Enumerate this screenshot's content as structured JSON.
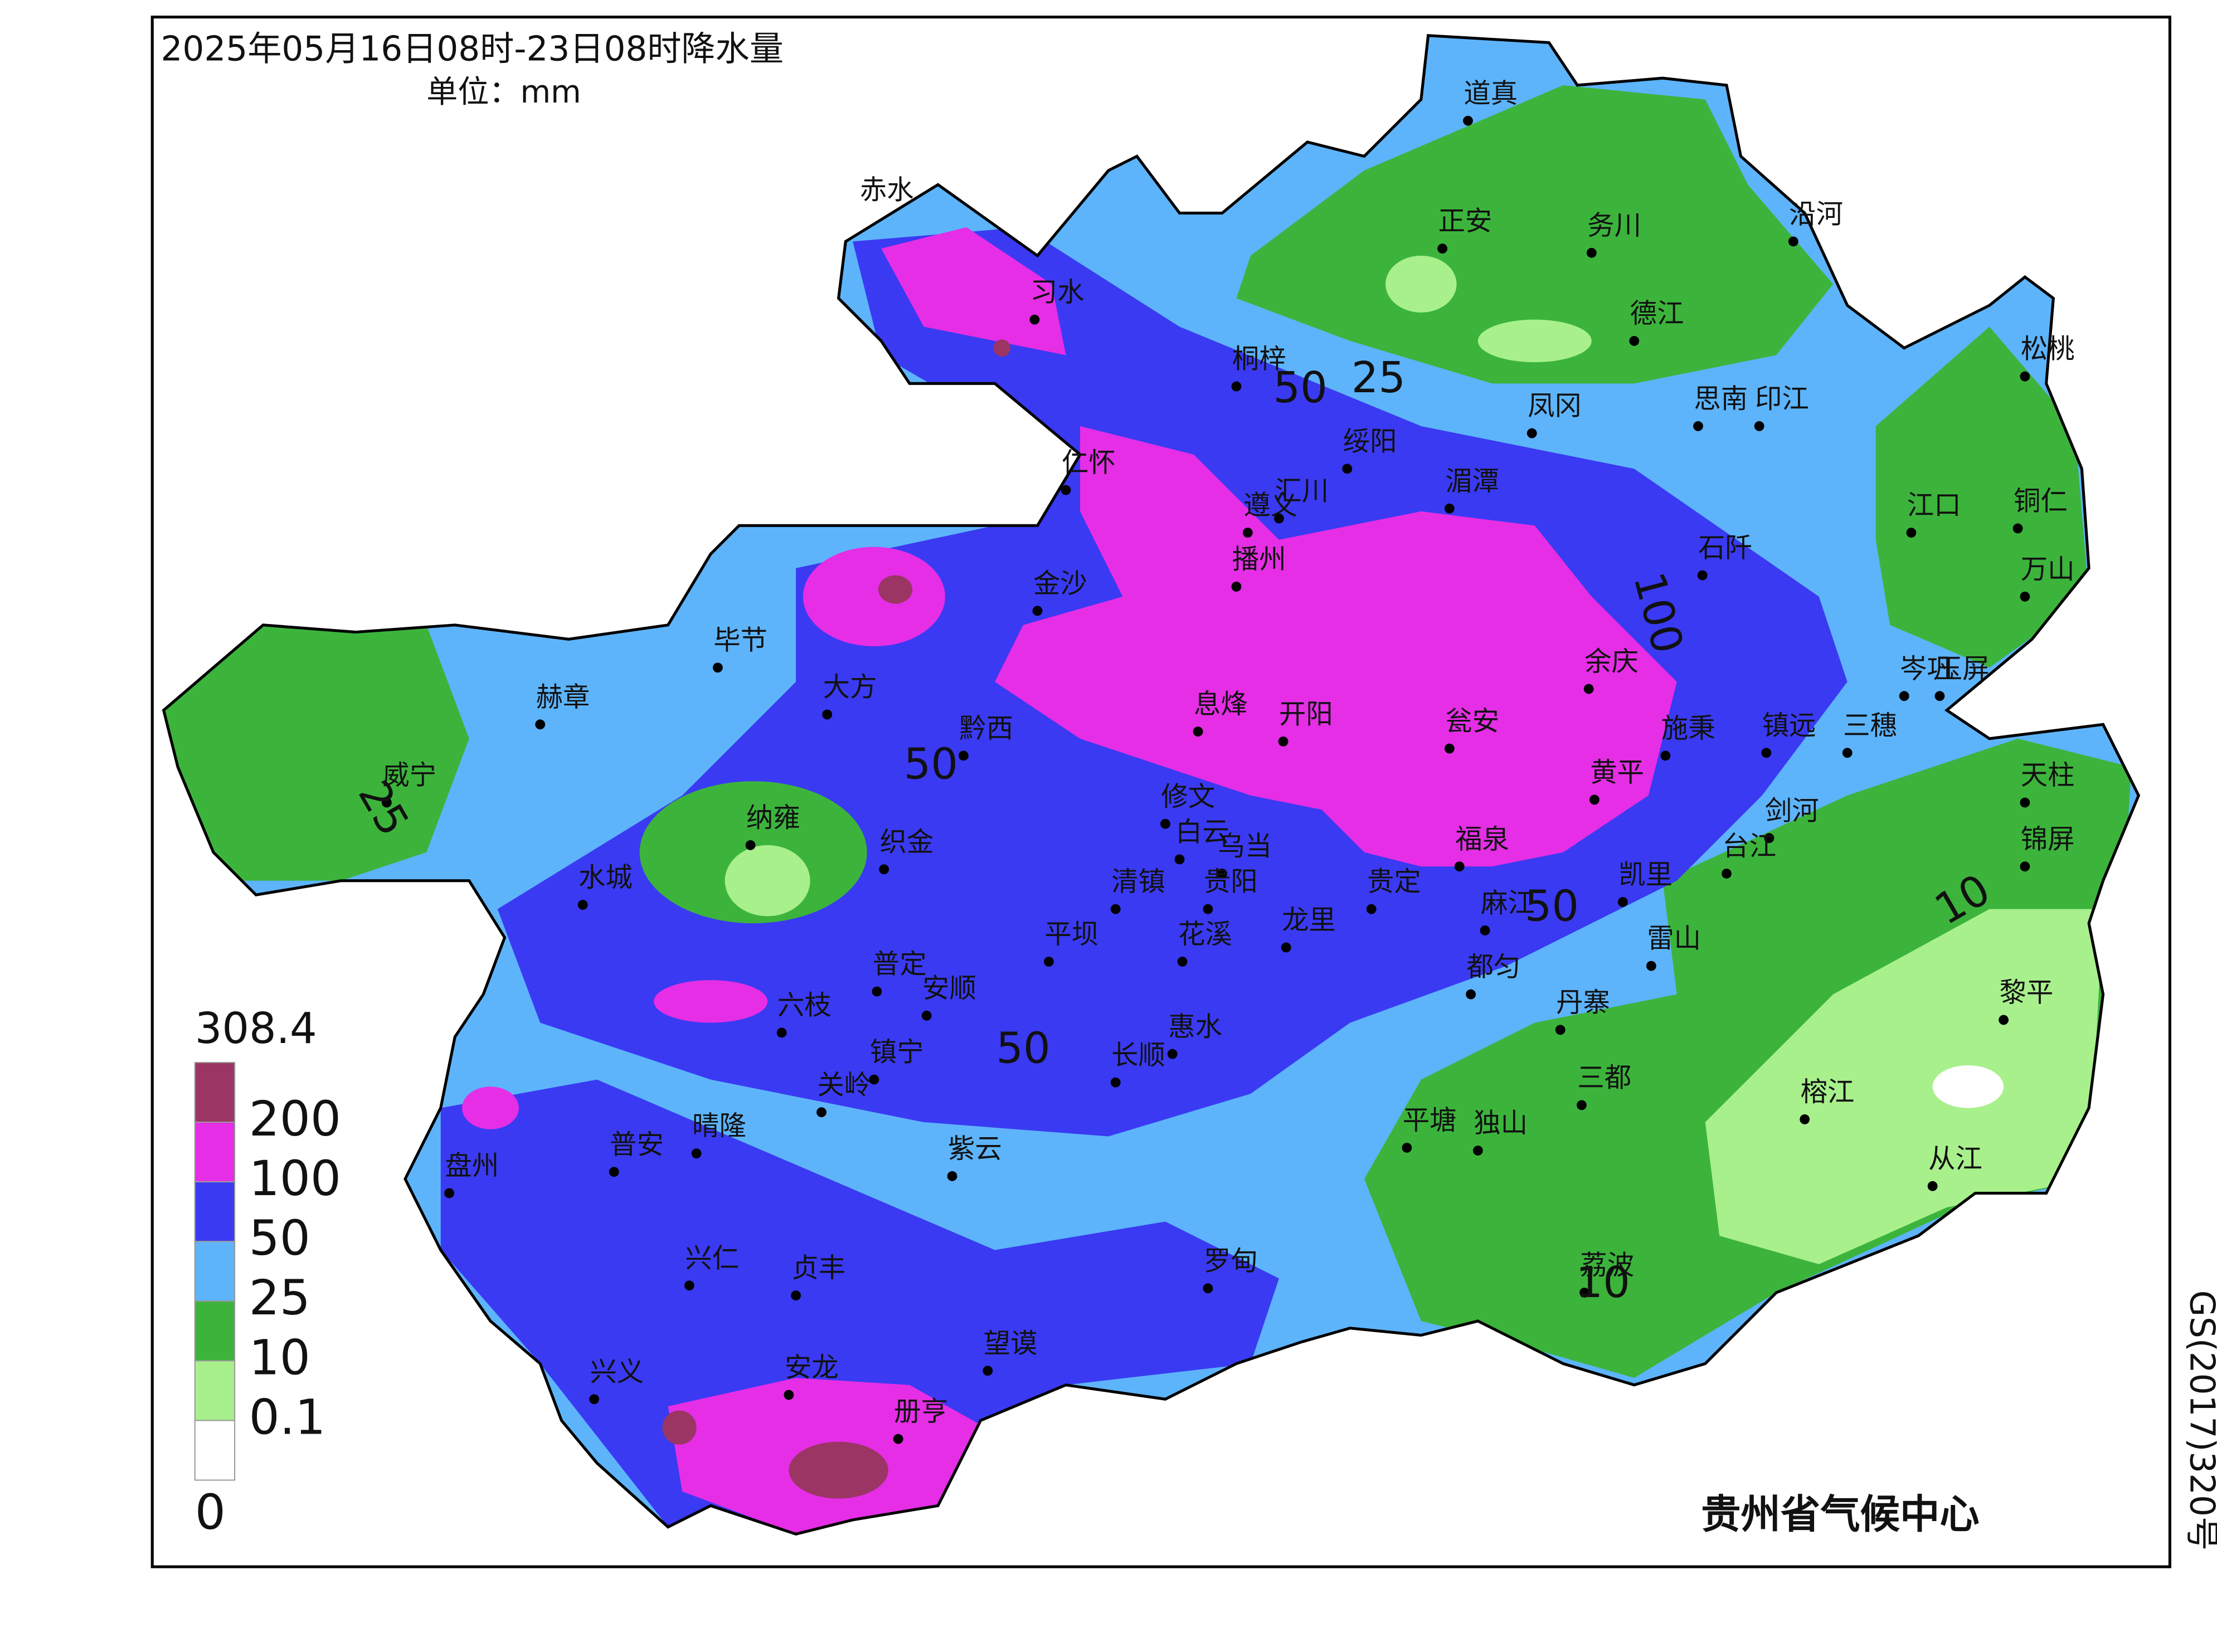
{
  "map": {
    "title": "2025年05月16日08时-23日08时降水量",
    "unit": "单位：mm",
    "credit": "贵州省气候中心",
    "approval": "GS(2017)320号",
    "legend": {
      "max": 308.4,
      "levels": [
        200,
        100,
        50,
        25,
        10,
        0.1,
        0
      ],
      "colors": [
        "#9b3563",
        "#e52ee5",
        "#3a3af2",
        "#5db4fb",
        "#3cb43c",
        "#a8f08c",
        "#ffffff"
      ]
    },
    "contour_labels": [
      50,
      25,
      100,
      50,
      25,
      50,
      50,
      10,
      10
    ],
    "cities": [
      "赤水",
      "习水",
      "道真",
      "正安",
      "务川",
      "沿河",
      "德江",
      "松桃",
      "桐梓",
      "凤冈",
      "思南",
      "印江",
      "绥阳",
      "仁怀",
      "遵义",
      "汇川",
      "湄潭",
      "江口",
      "铜仁",
      "万山",
      "石阡",
      "播州",
      "金沙",
      "毕节",
      "大方",
      "余庆",
      "岑巩",
      "玉屏",
      "赫章",
      "息烽",
      "开阳",
      "瓮安",
      "施秉",
      "镇远",
      "黔西",
      "三穗",
      "天柱",
      "威宁",
      "黄平",
      "修文",
      "纳雍",
      "织金",
      "福泉",
      "剑河",
      "台江",
      "锦屏",
      "白云",
      "乌当",
      "水城",
      "清镇",
      "贵阳",
      "贵定",
      "凯里",
      "麻江",
      "龙里",
      "花溪",
      "平坝",
      "雷山",
      "普定",
      "安顺",
      "六枝",
      "都匀",
      "丹寨",
      "黎平",
      "惠水",
      "长顺",
      "镇宁",
      "三都",
      "关岭",
      "榕江",
      "平塘",
      "独山",
      "晴隆",
      "普安",
      "紫云",
      "盘州",
      "从江",
      "兴仁",
      "贞丰",
      "罗甸",
      "荔波",
      "望谟",
      "兴义",
      "安龙",
      "册亨"
    ]
  }
}
